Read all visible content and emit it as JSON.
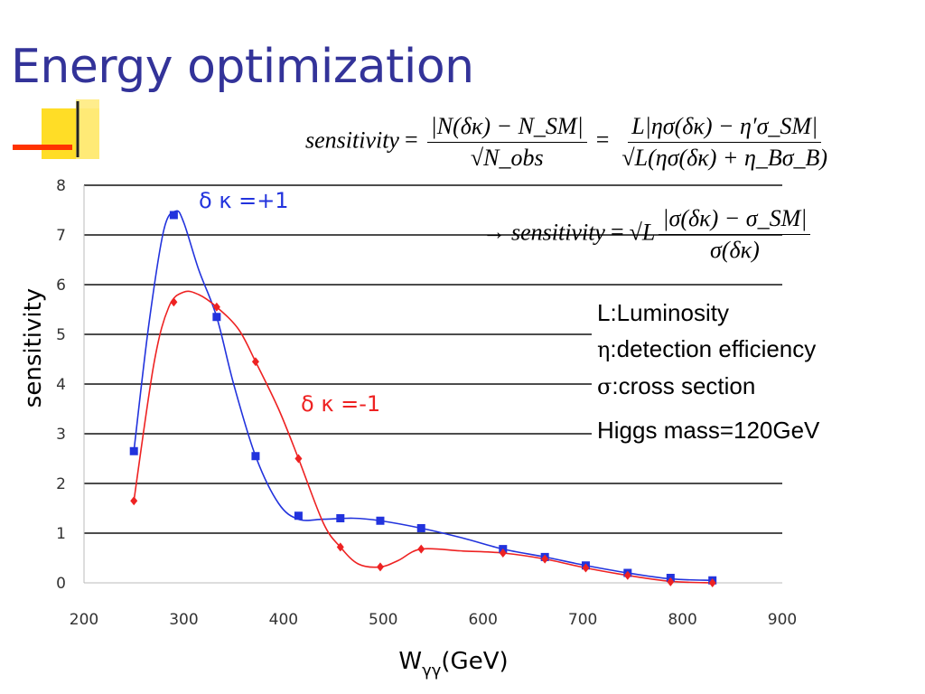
{
  "slide": {
    "title": "Energy optimization"
  },
  "formula": {
    "lhs": "sensitivity",
    "eq": "=",
    "frac1_num": "|N(δκ) − N_SM|",
    "frac1_den": "√N_obs",
    "frac2_num": "L|ησ(δκ) − η′σ_SM|",
    "frac2_den": "√L(ησ(δκ) + η_Bσ_B)",
    "arrow": "→",
    "sqrtL": "√L",
    "frac3_num": "|σ(δκ) − σ_SM|",
    "frac3_den": "σ(δκ)"
  },
  "notes": {
    "luminosity": "L:Luminosity",
    "eta_symbol": "η",
    "eta_text": ":detection efficiency",
    "sigma_symbol": "σ",
    "sigma_text": ":cross section",
    "higgs": "Higgs mass=120GeV"
  },
  "colors": {
    "title": "#333399",
    "series_plus": "#2233dd",
    "series_minus": "#ee2222",
    "decor_yellow": "#ffcc00",
    "decor_red": "#ff3300"
  },
  "chart_data": {
    "type": "scatter",
    "title": "",
    "xlabel": "W",
    "xlabel_sub": "γγ",
    "xlabel_unit": "(GeV)",
    "ylabel": "sensitivity",
    "xlim": [
      200,
      900
    ],
    "ylim": [
      0,
      8
    ],
    "x_ticks": [
      200,
      300,
      400,
      500,
      600,
      700,
      800,
      900
    ],
    "y_ticks": [
      0,
      1,
      2,
      3,
      4,
      5,
      6,
      7,
      8
    ],
    "grid": "horizontal",
    "series": [
      {
        "name": "δ κ =+1",
        "color": "#2233dd",
        "marker": "square",
        "points": [
          [
            250,
            2.65
          ],
          [
            290,
            7.4
          ],
          [
            333,
            5.35
          ],
          [
            372,
            2.55
          ],
          [
            415,
            1.35
          ],
          [
            457,
            1.3
          ],
          [
            497,
            1.25
          ],
          [
            538,
            1.1
          ],
          [
            620,
            0.68
          ],
          [
            662,
            0.52
          ],
          [
            703,
            0.35
          ],
          [
            745,
            0.2
          ],
          [
            788,
            0.1
          ],
          [
            830,
            0.05
          ]
        ],
        "curve": [
          [
            250,
            2.65
          ],
          [
            265,
            5.2
          ],
          [
            280,
            7.1
          ],
          [
            292,
            7.48
          ],
          [
            300,
            7.25
          ],
          [
            315,
            6.3
          ],
          [
            333,
            5.35
          ],
          [
            350,
            4.0
          ],
          [
            372,
            2.55
          ],
          [
            395,
            1.6
          ],
          [
            415,
            1.28
          ],
          [
            440,
            1.28
          ],
          [
            470,
            1.3
          ],
          [
            497,
            1.25
          ],
          [
            538,
            1.1
          ],
          [
            580,
            0.9
          ],
          [
            620,
            0.68
          ],
          [
            662,
            0.52
          ],
          [
            703,
            0.35
          ],
          [
            745,
            0.2
          ],
          [
            788,
            0.08
          ],
          [
            830,
            0.05
          ]
        ]
      },
      {
        "name": "δ κ =-1",
        "color": "#ee2222",
        "marker": "diamond",
        "points": [
          [
            250,
            1.65
          ],
          [
            290,
            5.65
          ],
          [
            333,
            5.55
          ],
          [
            372,
            4.45
          ],
          [
            415,
            2.5
          ],
          [
            457,
            0.72
          ],
          [
            497,
            0.32
          ],
          [
            538,
            0.68
          ],
          [
            620,
            0.6
          ],
          [
            662,
            0.48
          ],
          [
            703,
            0.3
          ],
          [
            745,
            0.15
          ],
          [
            788,
            0.02
          ],
          [
            830,
            0.0
          ]
        ],
        "curve": [
          [
            250,
            1.65
          ],
          [
            270,
            4.4
          ],
          [
            285,
            5.55
          ],
          [
            300,
            5.85
          ],
          [
            315,
            5.8
          ],
          [
            333,
            5.55
          ],
          [
            355,
            5.1
          ],
          [
            372,
            4.45
          ],
          [
            395,
            3.5
          ],
          [
            415,
            2.5
          ],
          [
            440,
            1.2
          ],
          [
            457,
            0.72
          ],
          [
            475,
            0.38
          ],
          [
            497,
            0.32
          ],
          [
            515,
            0.45
          ],
          [
            538,
            0.68
          ],
          [
            580,
            0.64
          ],
          [
            620,
            0.6
          ],
          [
            662,
            0.48
          ],
          [
            703,
            0.3
          ],
          [
            745,
            0.15
          ],
          [
            788,
            0.03
          ],
          [
            830,
            0.0
          ]
        ]
      }
    ]
  }
}
